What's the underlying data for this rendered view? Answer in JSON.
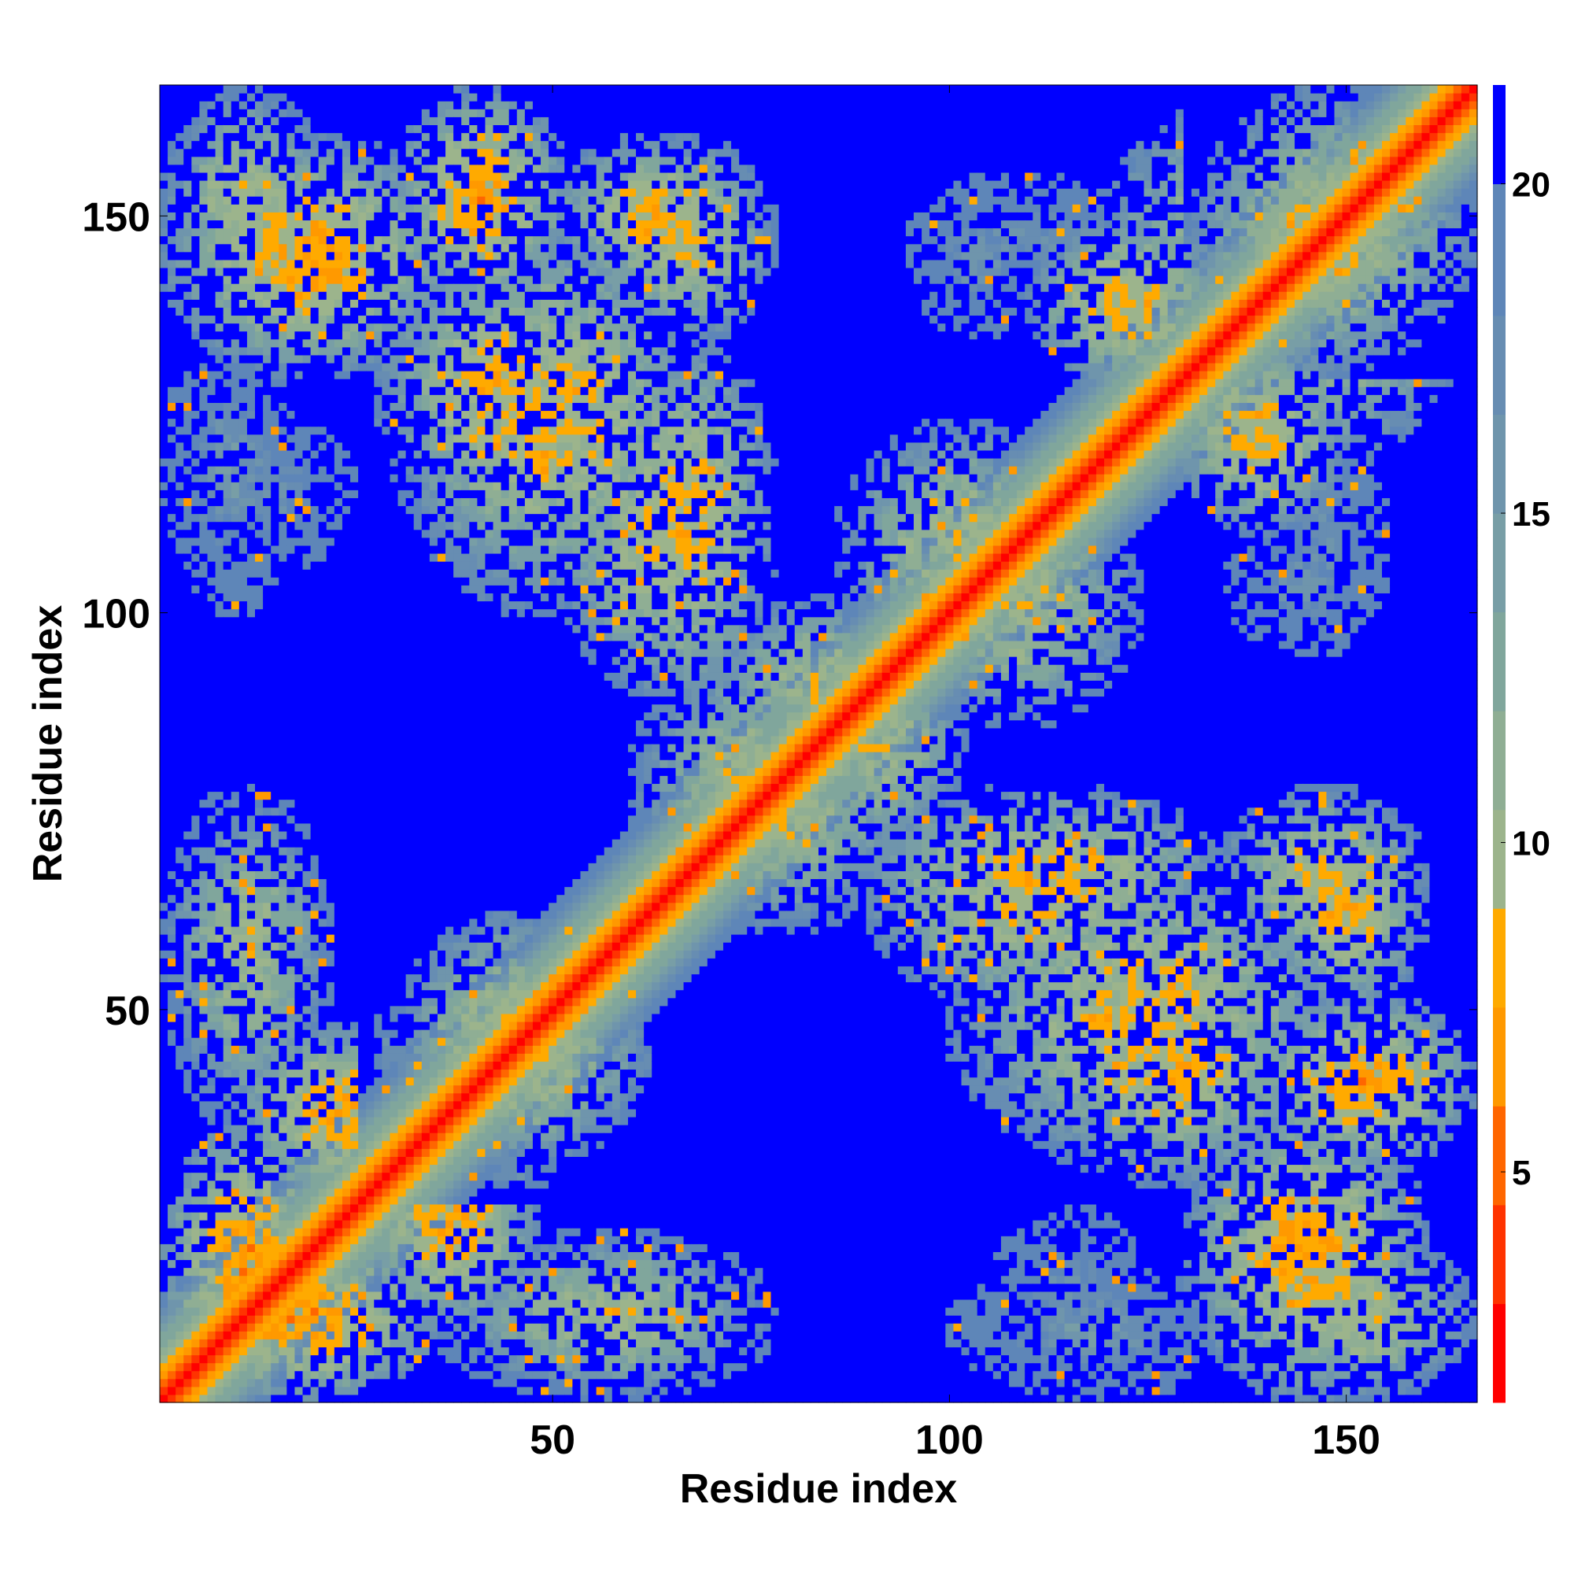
{
  "chart_data": {
    "type": "heatmap",
    "title": "",
    "xlabel": "Residue index",
    "ylabel": "Residue index",
    "n_residues": 166,
    "xlim": [
      0.5,
      166.5
    ],
    "ylim": [
      0.5,
      166.5
    ],
    "x_ticks": [
      50,
      100,
      150
    ],
    "y_ticks": [
      50,
      100,
      150
    ],
    "colorbar_ticks": [
      5,
      10,
      15,
      20
    ],
    "colorbar_range": [
      1.5,
      21.5
    ],
    "grid": false,
    "colormap": [
      {
        "max": 3,
        "color": "#ff0000"
      },
      {
        "max": 4.5,
        "color": "#ff3300"
      },
      {
        "max": 6,
        "color": "#ff6600"
      },
      {
        "max": 7.5,
        "color": "#ff9900"
      },
      {
        "max": 9,
        "color": "#ffaa00"
      },
      {
        "max": 10.5,
        "color": "#9cb48c"
      },
      {
        "max": 12,
        "color": "#8fae94"
      },
      {
        "max": 13.5,
        "color": "#80a69c"
      },
      {
        "max": 15,
        "color": "#789ea6"
      },
      {
        "max": 16.5,
        "color": "#6f95ac"
      },
      {
        "max": 18,
        "color": "#678db2"
      },
      {
        "max": 20,
        "color": "#5e86b8"
      },
      {
        "max": 99,
        "color": "#0000ff"
      }
    ],
    "contact_blocks": [
      {
        "x": [
          1,
          22
        ],
        "y": [
          1,
          35
        ],
        "peak": 6.5
      },
      {
        "x": [
          1,
          22
        ],
        "y": [
          35,
          78
        ],
        "peak": 10.0
      },
      {
        "x": [
          1,
          22
        ],
        "y": [
          137,
          166
        ],
        "peak": 9.0
      },
      {
        "x": [
          1,
          18
        ],
        "y": [
          100,
          136
        ],
        "peak": 15.5
      },
      {
        "x": [
          26,
          48
        ],
        "y": [
          10,
          36
        ],
        "peak": 7.5
      },
      {
        "x": [
          30,
          60
        ],
        "y": [
          28,
          62
        ],
        "peak": 8.5
      },
      {
        "x": [
          42,
          75
        ],
        "y": [
          1,
          22
        ],
        "peak": 9.5
      },
      {
        "x": [
          30,
          52
        ],
        "y": [
          138,
          166
        ],
        "peak": 7.0
      },
      {
        "x": [
          28,
          60
        ],
        "y": [
          112,
          145
        ],
        "peak": 8.0
      },
      {
        "x": [
          50,
          78
        ],
        "y": [
          90,
          128
        ],
        "peak": 8.5
      },
      {
        "x": [
          55,
          78
        ],
        "y": [
          134,
          160
        ],
        "peak": 8.5
      },
      {
        "x": [
          60,
          90
        ],
        "y": [
          62,
          95
        ],
        "peak": 9.5
      },
      {
        "x": [
          70,
          98
        ],
        "y": [
          78,
          102
        ],
        "peak": 9.0
      },
      {
        "x": [
          86,
          116
        ],
        "y": [
          92,
          124
        ],
        "peak": 9.0
      },
      {
        "x": [
          88,
          135
        ],
        "y": [
          55,
          78
        ],
        "peak": 8.0
      },
      {
        "x": [
          100,
          150
        ],
        "y": [
          30,
          70
        ],
        "peak": 8.5
      },
      {
        "x": [
          130,
          160
        ],
        "y": [
          1,
          38
        ],
        "peak": 7.5
      },
      {
        "x": [
          140,
          160
        ],
        "y": [
          50,
          75
        ],
        "peak": 8.0
      },
      {
        "x": [
          105,
          125
        ],
        "y": [
          1,
          25
        ],
        "peak": 16.0
      },
      {
        "x": [
          110,
          135
        ],
        "y": [
          128,
          150
        ],
        "peak": 8.0
      },
      {
        "x": [
          130,
          166
        ],
        "y": [
          120,
          166
        ],
        "peak": 8.0
      },
      {
        "x": [
          95,
          125
        ],
        "y": [
          140,
          155
        ],
        "peak": 16.0
      },
      {
        "x": [
          135,
          155
        ],
        "y": [
          95,
          112
        ],
        "peak": 16.0
      }
    ]
  }
}
